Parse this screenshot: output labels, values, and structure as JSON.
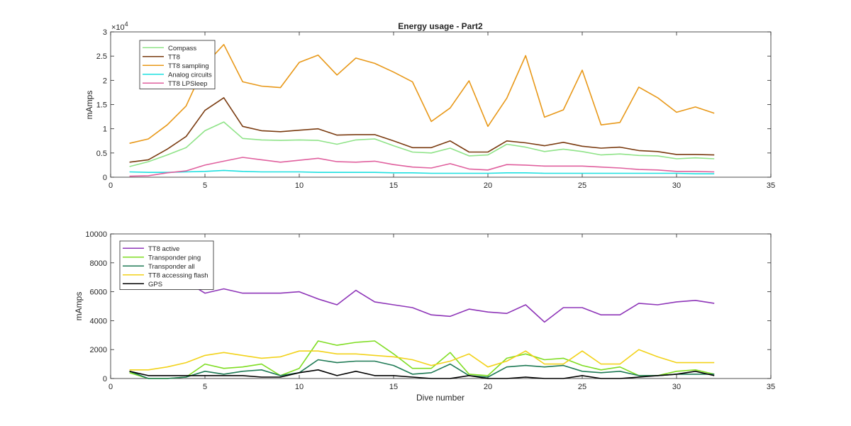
{
  "chart_data": [
    {
      "type": "line",
      "title": "Energy usage - Part2",
      "xlabel": "",
      "ylabel": "mAmps",
      "exponent_label": "× 10^4",
      "xlim": [
        0,
        35
      ],
      "ylim": [
        0,
        30000
      ],
      "xticks": [
        0,
        5,
        10,
        15,
        20,
        25,
        30,
        35
      ],
      "yticks": [
        0,
        5000,
        10000,
        15000,
        20000,
        25000,
        30000
      ],
      "ytick_labels": [
        "0",
        "0.5",
        "1",
        "1.5",
        "2",
        "2.5",
        "3"
      ],
      "grid": false,
      "legend_position": "top-left",
      "x": [
        1,
        2,
        3,
        4,
        5,
        6,
        7,
        8,
        9,
        10,
        11,
        12,
        13,
        14,
        15,
        16,
        17,
        18,
        19,
        20,
        21,
        22,
        23,
        24,
        25,
        26,
        27,
        28,
        29,
        30,
        31,
        32
      ],
      "series": [
        {
          "name": "Compass",
          "color": "#8fe388",
          "values": [
            2200,
            3200,
            4600,
            6100,
            9600,
            11400,
            8000,
            7700,
            7600,
            7700,
            7600,
            6800,
            7700,
            7900,
            6500,
            5200,
            5000,
            6000,
            4400,
            4600,
            6800,
            6200,
            5300,
            5800,
            5300,
            4600,
            4800,
            4500,
            4400,
            3800,
            4000,
            3800
          ]
        },
        {
          "name": "TT8",
          "color": "#7a3b10",
          "values": [
            3100,
            3600,
            5800,
            8400,
            13800,
            16400,
            10500,
            9600,
            9400,
            9700,
            10000,
            8700,
            8800,
            8800,
            7500,
            6100,
            6100,
            7500,
            5200,
            5200,
            7500,
            7100,
            6500,
            7200,
            6400,
            6000,
            6200,
            5500,
            5300,
            4700,
            4700,
            4600
          ]
        },
        {
          "name": "TT8 sampling",
          "color": "#e89818",
          "values": [
            7000,
            7900,
            10800,
            14700,
            23200,
            27400,
            19700,
            18800,
            18500,
            23700,
            25200,
            21100,
            24600,
            23500,
            21700,
            19700,
            11500,
            14300,
            19900,
            10500,
            16300,
            25100,
            12400,
            13900,
            22100,
            10800,
            11300,
            18600,
            16400,
            13400,
            14500,
            13200
          ]
        },
        {
          "name": "Analog circuits",
          "color": "#1ee0e0",
          "values": [
            1100,
            1000,
            1000,
            1100,
            1200,
            1400,
            1200,
            1100,
            1100,
            1100,
            1000,
            1000,
            1000,
            1000,
            900,
            900,
            800,
            800,
            800,
            800,
            900,
            900,
            800,
            800,
            800,
            800,
            800,
            800,
            800,
            800,
            700,
            700
          ]
        },
        {
          "name": "TT8 LPSleep",
          "color": "#e0609e",
          "values": [
            200,
            300,
            900,
            1300,
            2500,
            3300,
            4100,
            3600,
            3100,
            3500,
            3900,
            3200,
            3100,
            3300,
            2600,
            2100,
            1900,
            2800,
            1700,
            1500,
            2600,
            2500,
            2300,
            2300,
            2300,
            2100,
            1900,
            1600,
            1500,
            1200,
            1200,
            1100
          ]
        }
      ]
    },
    {
      "type": "line",
      "title": "",
      "xlabel": "Dive number",
      "ylabel": "mAmps",
      "xlim": [
        0,
        35
      ],
      "ylim": [
        0,
        10000
      ],
      "xticks": [
        0,
        5,
        10,
        15,
        20,
        25,
        30,
        35
      ],
      "yticks": [
        0,
        2000,
        4000,
        6000,
        8000,
        10000
      ],
      "ytick_labels": [
        "0",
        "2000",
        "4000",
        "6000",
        "8000",
        "10000"
      ],
      "grid": false,
      "legend_position": "top-left",
      "x": [
        1,
        2,
        3,
        4,
        5,
        6,
        7,
        8,
        9,
        10,
        11,
        12,
        13,
        14,
        15,
        16,
        17,
        18,
        19,
        20,
        21,
        22,
        23,
        24,
        25,
        26,
        27,
        28,
        29,
        30,
        31,
        32
      ],
      "series": [
        {
          "name": "TT8 active",
          "color": "#8e35b8",
          "values": [
            7500,
            7300,
            7100,
            6700,
            5900,
            6200,
            5900,
            5900,
            5900,
            6000,
            5500,
            5100,
            6100,
            5300,
            5100,
            4900,
            4400,
            4300,
            4800,
            4600,
            4500,
            5100,
            3900,
            4900,
            4900,
            4400,
            4400,
            5200,
            5100,
            5300,
            5400,
            5200
          ]
        },
        {
          "name": "Transponder ping",
          "color": "#7fdd22",
          "values": [
            400,
            0,
            0,
            100,
            1000,
            700,
            800,
            1000,
            200,
            700,
            2600,
            2300,
            2500,
            2600,
            1700,
            700,
            700,
            1800,
            300,
            200,
            1400,
            1700,
            1300,
            1400,
            900,
            600,
            800,
            200,
            200,
            500,
            600,
            300
          ]
        },
        {
          "name": "Transponder all",
          "color": "#1f7a55",
          "values": [
            500,
            0,
            0,
            100,
            500,
            300,
            500,
            600,
            200,
            400,
            1300,
            1100,
            1200,
            1200,
            900,
            300,
            400,
            1000,
            200,
            100,
            800,
            900,
            800,
            900,
            500,
            400,
            500,
            200,
            200,
            300,
            300,
            300
          ]
        },
        {
          "name": "TT8 accessing flash",
          "color": "#f2d21a",
          "values": [
            600,
            600,
            800,
            1100,
            1600,
            1800,
            1600,
            1400,
            1500,
            1900,
            1900,
            1700,
            1700,
            1600,
            1500,
            1300,
            900,
            1200,
            1700,
            800,
            1200,
            1900,
            1000,
            1000,
            1900,
            1000,
            1000,
            2000,
            1500,
            1100,
            1100,
            1100
          ]
        },
        {
          "name": "GPS",
          "color": "#000000",
          "values": [
            500,
            200,
            200,
            200,
            200,
            200,
            200,
            100,
            100,
            400,
            600,
            200,
            500,
            200,
            200,
            100,
            0,
            0,
            200,
            0,
            0,
            100,
            0,
            0,
            200,
            0,
            0,
            100,
            200,
            300,
            500,
            200
          ]
        }
      ]
    }
  ]
}
